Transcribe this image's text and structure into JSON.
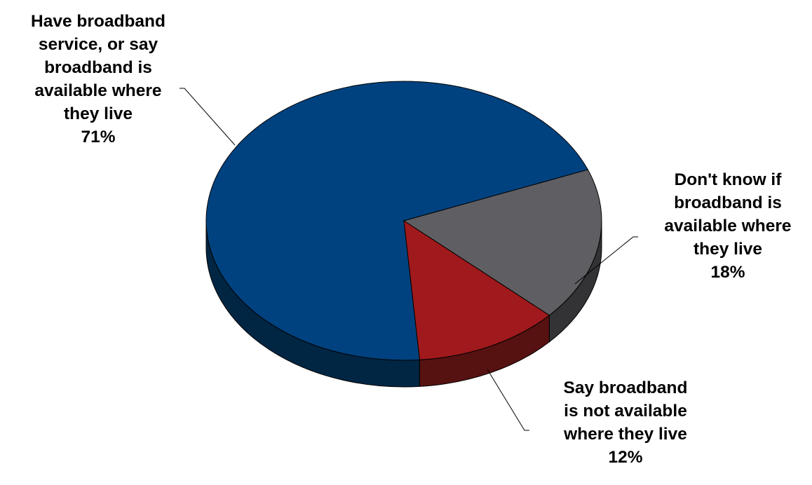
{
  "chart_data": {
    "type": "pie",
    "title": "",
    "slices": [
      {
        "label_lines": [
          "Have broadband",
          "service, or say",
          "broadband is",
          "available where",
          "they live"
        ],
        "value": 71,
        "value_label": "71%",
        "color": "#00427F",
        "side_color": "#002644"
      },
      {
        "label_lines": [
          "Don't know if",
          "broadband is",
          "available where",
          "they live"
        ],
        "value": 18,
        "value_label": "18%",
        "color": "#5F5F63",
        "side_color": "#333335"
      },
      {
        "label_lines": [
          "Say broadband",
          "is not available",
          "where they live"
        ],
        "value": 12,
        "value_label": "12%",
        "color": "#A0191C",
        "side_color": "#561111"
      }
    ],
    "legend": "none",
    "style": "3d-pie",
    "edge_color": "#000000"
  }
}
